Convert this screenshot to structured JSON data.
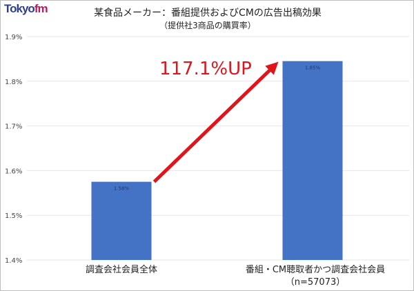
{
  "logo": {
    "text_main": "Tokyo",
    "text_accent": "fm"
  },
  "chart_data": {
    "type": "bar",
    "title": "某食品メーカー：番組提供およびCMの広告出稿効果",
    "subtitle": "（提供社3商品の購買率）",
    "categories": [
      "調査会社会員全体",
      "番組・CM聴取者かつ調査会社会員\n（n=57073）"
    ],
    "values": [
      1.575,
      1.845
    ],
    "data_labels": [
      "1.58%",
      "1.85%"
    ],
    "ylim": [
      1.4,
      1.9
    ],
    "yticks": [
      "1.4%",
      "1.5%",
      "1.6%",
      "1.7%",
      "1.8%",
      "1.9%"
    ],
    "grid": true,
    "annotation": "117.1%UP",
    "colors": {
      "bar": "#4472c4",
      "arrow": "#e0141b",
      "annotation": "#e0141b",
      "grid": "#e6e6e6"
    }
  }
}
